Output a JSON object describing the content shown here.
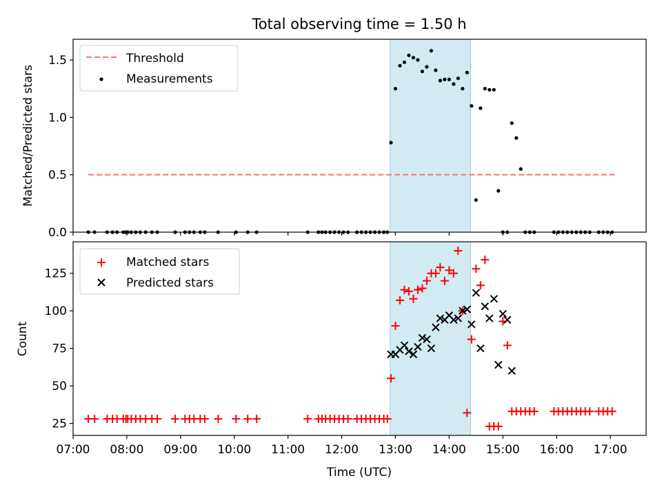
{
  "chart_data": [
    {
      "type": "scatter",
      "title": "Total observing time = 1.50 h",
      "ylabel": "Matched/Predicted stars",
      "xlabel": "",
      "xlim": [
        "07:00",
        "17:40"
      ],
      "ylim": [
        0,
        1.68
      ],
      "y_ticks": [
        "0.0",
        "0.5",
        "1.0",
        "1.5"
      ],
      "grid": false,
      "legend_position": "top-left",
      "highlight_span": {
        "start": "12:54",
        "end": "14:24",
        "color": "#add8e6"
      },
      "series": [
        {
          "name": "Threshold",
          "style": "dashed-line",
          "color": "#ff6e6e",
          "x": [
            "07:17",
            "17:05"
          ],
          "y": [
            0.5,
            0.5
          ]
        },
        {
          "name": "Measurements",
          "style": "dot",
          "color": "#000000",
          "x": [
            "07:17",
            "07:24",
            "07:38",
            "07:44",
            "07:49",
            "07:56",
            "07:59",
            "08:01",
            "08:05",
            "08:10",
            "08:15",
            "08:21",
            "08:28",
            "08:34",
            "08:54",
            "09:05",
            "09:10",
            "09:15",
            "09:22",
            "09:27",
            "09:42",
            "10:02",
            "10:15",
            "10:25",
            "11:22",
            "11:34",
            "11:38",
            "11:42",
            "11:47",
            "11:52",
            "11:57",
            "12:02",
            "12:07",
            "12:17",
            "12:22",
            "12:27",
            "12:32",
            "12:37",
            "12:42",
            "12:47",
            "12:51",
            "12:55",
            "13:00",
            "13:05",
            "13:10",
            "13:15",
            "13:20",
            "13:25",
            "13:30",
            "13:35",
            "13:40",
            "13:45",
            "13:50",
            "13:55",
            "14:00",
            "14:05",
            "14:10",
            "14:15",
            "14:20",
            "14:25",
            "14:30",
            "14:35",
            "14:40",
            "14:45",
            "14:50",
            "14:55",
            "15:00",
            "15:05",
            "15:10",
            "15:15",
            "15:20",
            "15:25",
            "15:30",
            "15:35",
            "15:57",
            "16:02",
            "16:07",
            "16:12",
            "16:17",
            "16:22",
            "16:27",
            "16:32",
            "16:37",
            "16:47",
            "16:52",
            "16:57",
            "17:02"
          ],
          "y": [
            0,
            0,
            0,
            0,
            0,
            0,
            0,
            0,
            0,
            0,
            0,
            0,
            0,
            0,
            0,
            0,
            0,
            0,
            0,
            0,
            0,
            0,
            0,
            0,
            0,
            0,
            0,
            0,
            0,
            0,
            0,
            0,
            0,
            0,
            0,
            0,
            0,
            0,
            0,
            0,
            0,
            0.78,
            1.25,
            1.45,
            1.48,
            1.54,
            1.52,
            1.5,
            1.4,
            1.44,
            1.58,
            1.41,
            1.32,
            1.33,
            1.33,
            1.29,
            1.34,
            1.25,
            1.39,
            1.1,
            0.28,
            1.08,
            1.25,
            1.24,
            1.24,
            0.36,
            0,
            0,
            0.95,
            0.82,
            0.55,
            0,
            0,
            0,
            0,
            0,
            0,
            0,
            0,
            0,
            0,
            0,
            0,
            0,
            0,
            0,
            0
          ]
        }
      ]
    },
    {
      "type": "scatter",
      "title": "",
      "ylabel": "Count",
      "xlabel": "Time (UTC)",
      "xlim": [
        "07:00",
        "17:40"
      ],
      "ylim": [
        17,
        146
      ],
      "x_ticks": [
        "07:00",
        "08:00",
        "09:00",
        "10:00",
        "11:00",
        "12:00",
        "13:00",
        "14:00",
        "15:00",
        "16:00",
        "17:00"
      ],
      "y_ticks": [
        "25",
        "50",
        "75",
        "100",
        "125"
      ],
      "grid": false,
      "legend_position": "top-left",
      "highlight_span": {
        "start": "12:54",
        "end": "14:24",
        "color": "#add8e6"
      },
      "series": [
        {
          "name": "Matched stars",
          "style": "plus",
          "color": "#ff0000",
          "x": [
            "07:17",
            "07:24",
            "07:38",
            "07:44",
            "07:49",
            "07:56",
            "07:59",
            "08:01",
            "08:05",
            "08:10",
            "08:15",
            "08:21",
            "08:28",
            "08:34",
            "08:54",
            "09:05",
            "09:10",
            "09:15",
            "09:22",
            "09:27",
            "09:42",
            "10:02",
            "10:15",
            "10:25",
            "11:22",
            "11:34",
            "11:38",
            "11:42",
            "11:47",
            "11:52",
            "11:57",
            "12:02",
            "12:07",
            "12:17",
            "12:22",
            "12:27",
            "12:32",
            "12:37",
            "12:42",
            "12:47",
            "12:51",
            "12:55",
            "13:00",
            "13:05",
            "13:10",
            "13:15",
            "13:20",
            "13:25",
            "13:30",
            "13:35",
            "13:40",
            "13:45",
            "13:50",
            "13:55",
            "14:00",
            "14:05",
            "14:10",
            "14:15",
            "14:20",
            "14:25",
            "14:30",
            "14:35",
            "14:40",
            "14:45",
            "14:50",
            "14:55",
            "15:00",
            "15:05",
            "15:10",
            "15:15",
            "15:20",
            "15:25",
            "15:30",
            "15:35",
            "15:57",
            "16:02",
            "16:07",
            "16:12",
            "16:17",
            "16:22",
            "16:27",
            "16:32",
            "16:37",
            "16:47",
            "16:52",
            "16:57",
            "17:02"
          ],
          "y": [
            28,
            28,
            28,
            28,
            28,
            28,
            28,
            28,
            28,
            28,
            28,
            28,
            28,
            28,
            28,
            28,
            28,
            28,
            28,
            28,
            28,
            28,
            28,
            28,
            28,
            28,
            28,
            28,
            28,
            28,
            28,
            28,
            28,
            28,
            28,
            28,
            28,
            28,
            28,
            28,
            28,
            55,
            90,
            107,
            114,
            113,
            108,
            114,
            115,
            120,
            125,
            125,
            129,
            120,
            127,
            125,
            140,
            100,
            32,
            81,
            128,
            117,
            134,
            23,
            23,
            23,
            93,
            77,
            33,
            33,
            33,
            33,
            33,
            33,
            33,
            33,
            33,
            33,
            33,
            33,
            33,
            33,
            33,
            33,
            33,
            33,
            33
          ],
          "y_note": ""
        },
        {
          "name": "Predicted stars",
          "style": "x",
          "color": "#000000",
          "x": [
            "12:55",
            "13:00",
            "13:05",
            "13:10",
            "13:15",
            "13:20",
            "13:25",
            "13:30",
            "13:35",
            "13:40",
            "13:45",
            "13:50",
            "13:55",
            "14:00",
            "14:05",
            "14:10",
            "14:15",
            "14:20",
            "14:25",
            "14:30",
            "14:35",
            "14:40",
            "14:45",
            "14:50",
            "14:55",
            "15:00",
            "15:05",
            "15:10"
          ],
          "y": [
            71,
            71,
            74,
            77,
            73,
            71,
            76,
            82,
            81,
            75,
            89,
            95,
            94,
            97,
            94,
            95,
            100,
            101,
            91,
            112,
            75,
            103,
            95,
            108,
            64,
            98,
            94,
            60
          ]
        }
      ]
    }
  ]
}
